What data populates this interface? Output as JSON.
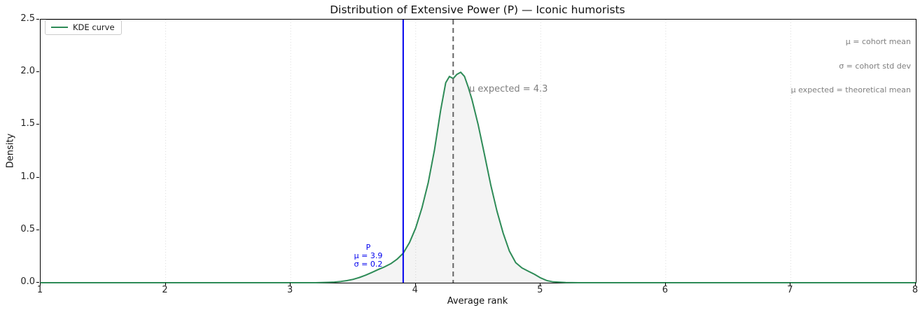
{
  "title": "Distribution of Extensive Power (P) — Iconic humorists",
  "legend": {
    "label": "KDE curve"
  },
  "x_axis": {
    "label": "Average rank"
  },
  "y_axis": {
    "label": "Density"
  },
  "notes": {
    "line1": "μ = cohort mean",
    "line2": "σ = cohort std dev",
    "line3": "μ expected = theoretical mean"
  },
  "expected_annotation": "μ expected = 4.3",
  "stat_annotation": {
    "title": "P",
    "mu": "μ = 3.9",
    "sigma": "σ = 0.2"
  },
  "colors": {
    "kde": "#2e8b57",
    "mean_line": "#0000ee",
    "expected_line": "#666666",
    "grid": "#dcdcdc",
    "fill": "rgba(130,130,130,0.09)",
    "annotation_gray": "#7f7f7f",
    "annotation_blue": "#0000ee"
  },
  "chart_data": {
    "type": "line",
    "title": "Distribution of Extensive Power (P) — Iconic humorists",
    "xlabel": "Average rank",
    "ylabel": "Density",
    "xlim": [
      1,
      8
    ],
    "ylim": [
      0,
      2.5
    ],
    "x_ticks": [
      1,
      2,
      3,
      4,
      5,
      6,
      7,
      8
    ],
    "y_ticks": [
      0.0,
      0.5,
      1.0,
      1.5,
      2.0,
      2.5
    ],
    "grid": "vertical-dotted",
    "legend_position": "upper-left",
    "series": [
      {
        "name": "KDE curve",
        "color": "#2e8b57",
        "fill_under": true,
        "points": [
          [
            1.0,
            0
          ],
          [
            3.2,
            0
          ],
          [
            3.3,
            0.003
          ],
          [
            3.35,
            0.006
          ],
          [
            3.4,
            0.012
          ],
          [
            3.45,
            0.02
          ],
          [
            3.5,
            0.032
          ],
          [
            3.55,
            0.05
          ],
          [
            3.6,
            0.072
          ],
          [
            3.65,
            0.098
          ],
          [
            3.7,
            0.125
          ],
          [
            3.75,
            0.15
          ],
          [
            3.8,
            0.18
          ],
          [
            3.85,
            0.222
          ],
          [
            3.9,
            0.28
          ],
          [
            3.95,
            0.38
          ],
          [
            4.0,
            0.52
          ],
          [
            4.05,
            0.71
          ],
          [
            4.1,
            0.95
          ],
          [
            4.15,
            1.26
          ],
          [
            4.2,
            1.64
          ],
          [
            4.24,
            1.9
          ],
          [
            4.27,
            1.96
          ],
          [
            4.3,
            1.94
          ],
          [
            4.33,
            1.98
          ],
          [
            4.36,
            2.0
          ],
          [
            4.39,
            1.96
          ],
          [
            4.42,
            1.86
          ],
          [
            4.45,
            1.74
          ],
          [
            4.5,
            1.5
          ],
          [
            4.55,
            1.22
          ],
          [
            4.6,
            0.93
          ],
          [
            4.65,
            0.68
          ],
          [
            4.7,
            0.47
          ],
          [
            4.75,
            0.3
          ],
          [
            4.8,
            0.19
          ],
          [
            4.85,
            0.14
          ],
          [
            4.9,
            0.11
          ],
          [
            4.95,
            0.08
          ],
          [
            5.0,
            0.045
          ],
          [
            5.05,
            0.02
          ],
          [
            5.1,
            0.008
          ],
          [
            5.2,
            0.002
          ],
          [
            5.3,
            0
          ],
          [
            8.0,
            0
          ]
        ]
      }
    ],
    "vlines": [
      {
        "x": 3.9,
        "style": "solid",
        "color": "#0000ee",
        "label": "P  μ = 3.9  σ = 0.2"
      },
      {
        "x": 4.3,
        "style": "dashed",
        "color": "#666666",
        "label": "μ expected = 4.3"
      }
    ]
  }
}
